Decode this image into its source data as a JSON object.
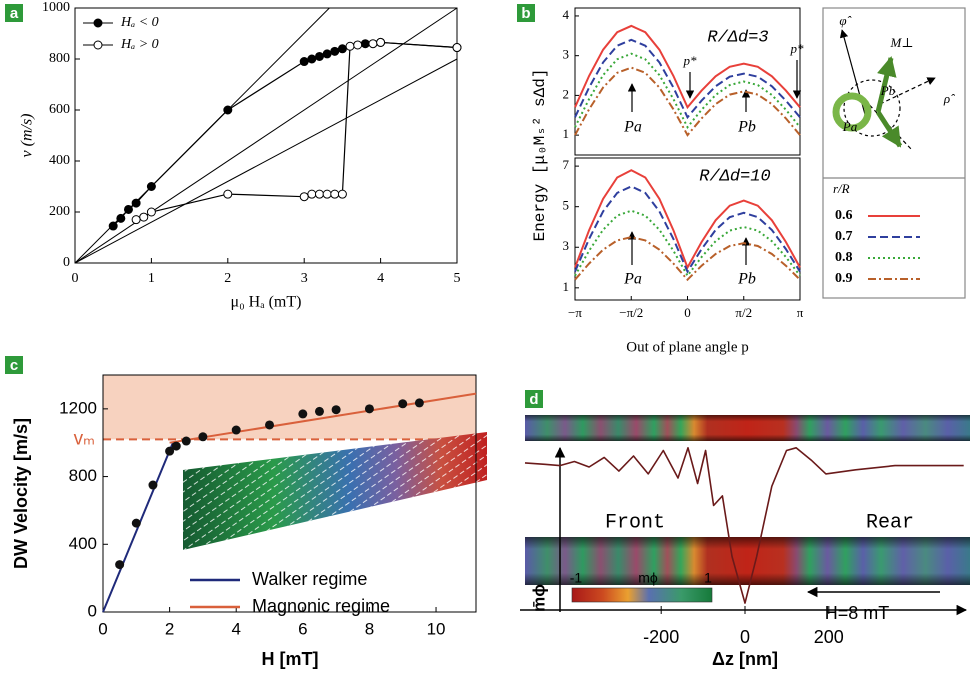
{
  "chart_data": [
    {
      "type": "line",
      "panel_label": "a",
      "xlabel": "μ₀ Hₐ (mT)",
      "ylabel": "v (m/s)",
      "xlim": [
        0,
        5
      ],
      "ylim": [
        0,
        1000
      ],
      "xticks": [
        0,
        1,
        2,
        3,
        4,
        5
      ],
      "yticks": [
        0,
        200,
        400,
        600,
        800,
        1000
      ],
      "legend": "upper left",
      "series": [
        {
          "name": "Hₐ < 0",
          "color": "#000000",
          "marker": "filled",
          "x": [
            0.5,
            0.6,
            0.7,
            0.8,
            1,
            2,
            3,
            3.1,
            3.2,
            3.3,
            3.4,
            3.5,
            3.8,
            4,
            5
          ],
          "values": [
            145,
            175,
            210,
            235,
            300,
            600,
            790,
            800,
            810,
            820,
            830,
            840,
            860,
            865,
            845
          ]
        },
        {
          "name": "Hₐ > 0",
          "color": "#000000",
          "marker": "open",
          "x": [
            0.8,
            0.9,
            1,
            2,
            3,
            3.1,
            3.2,
            3.3,
            3.4,
            3.5,
            3.6,
            3.7,
            3.9,
            4,
            5
          ],
          "values": [
            170,
            180,
            200,
            270,
            260,
            270,
            270,
            270,
            270,
            270,
            850,
            855,
            860,
            865,
            845
          ]
        }
      ],
      "guides": [
        {
          "x": [
            0,
            3.33
          ],
          "values": [
            0,
            1000
          ]
        },
        {
          "x": [
            0,
            5
          ],
          "values": [
            0,
            1000
          ]
        },
        {
          "x": [
            0,
            5
          ],
          "values": [
            0,
            800
          ]
        }
      ]
    },
    {
      "type": "line",
      "panel_label": "b",
      "xlim": [
        -3.1416,
        3.1416
      ],
      "ylim": [
        0.5,
        4.2
      ],
      "yticks": [
        1,
        2,
        3,
        4
      ],
      "annotations": [
        "R/Δd=3",
        "p*",
        "p*",
        "Pa",
        "Pb"
      ],
      "legend_title": "r/R",
      "diagram_labels": [
        "φ̂",
        "M⊥",
        "ρ̂",
        "Pa",
        "Pb"
      ],
      "x": [
        -3.1416,
        -2.7489,
        -2.3562,
        -1.9635,
        -1.5708,
        -1.1781,
        -0.7854,
        -0.3927,
        0,
        0.3927,
        0.7854,
        1.1781,
        1.5708,
        1.9635,
        2.3562,
        2.7489,
        3.1416
      ],
      "series": [
        {
          "name": "0.6",
          "color": "#e8403a",
          "dash": "solid",
          "values": [
            1.7,
            2.49,
            3.15,
            3.59,
            3.75,
            3.59,
            3.15,
            2.49,
            1.7,
            2.12,
            2.48,
            2.72,
            2.8,
            2.72,
            2.48,
            2.12,
            1.7
          ]
        },
        {
          "name": "0.7",
          "color": "#2f3f9e",
          "dash": "dashed",
          "values": [
            1.45,
            2.2,
            2.83,
            3.25,
            3.4,
            3.25,
            2.83,
            2.2,
            1.45,
            1.87,
            2.23,
            2.47,
            2.55,
            2.47,
            2.23,
            1.87,
            1.45
          ]
        },
        {
          "name": "0.8",
          "color": "#3aa83a",
          "dash": "dotted",
          "values": [
            1.2,
            1.91,
            2.51,
            2.91,
            3.05,
            2.91,
            2.51,
            1.91,
            1.2,
            1.64,
            2.01,
            2.26,
            2.35,
            2.26,
            2.01,
            1.64,
            1.2
          ]
        },
        {
          "name": "0.9",
          "color": "#b8602a",
          "dash": "dashdot",
          "values": [
            1.0,
            1.65,
            2.2,
            2.57,
            2.7,
            2.57,
            2.2,
            1.65,
            1.0,
            1.42,
            1.78,
            2.02,
            2.1,
            2.02,
            1.78,
            1.42,
            1.0
          ]
        }
      ]
    },
    {
      "type": "line",
      "xlabel": "Out of plane angle p",
      "ylabel": "Energy [μ₀Mₛ² sΔd]",
      "xlim": [
        -3.1416,
        3.1416
      ],
      "ylim": [
        0.4,
        7.4
      ],
      "xticks": [
        {
          "value": -3.1416,
          "label": "−π"
        },
        {
          "value": -1.5708,
          "label": "−π/2"
        },
        0,
        {
          "value": 1.5708,
          "label": "π/2"
        },
        {
          "value": 3.1416,
          "label": "π"
        }
      ],
      "yticks": [
        1,
        3,
        5,
        7
      ],
      "annotations": [
        "R/Δd=10",
        "Pa",
        "Pb"
      ],
      "x": [
        -3.1416,
        -2.7489,
        -2.3562,
        -1.9635,
        -1.5708,
        -1.1781,
        -0.7854,
        -0.3927,
        0,
        0.3927,
        0.7854,
        1.1781,
        1.5708,
        1.9635,
        2.3562,
        2.7489,
        3.1416
      ],
      "series": [
        {
          "color": "#e8403a",
          "dash": "solid",
          "values": [
            2.0,
            3.84,
            5.39,
            6.44,
            6.8,
            6.44,
            5.39,
            3.84,
            2.0,
            3.26,
            4.33,
            5.05,
            5.3,
            5.05,
            4.33,
            3.26,
            2.0
          ]
        },
        {
          "color": "#2f3f9e",
          "dash": "dashed",
          "values": [
            1.8,
            3.41,
            4.77,
            5.68,
            6.0,
            5.68,
            4.77,
            3.41,
            1.8,
            2.91,
            3.85,
            4.48,
            4.7,
            4.48,
            3.85,
            2.91,
            1.8
          ]
        },
        {
          "color": "#3aa83a",
          "dash": "dotted",
          "values": [
            1.6,
            2.83,
            3.86,
            4.56,
            4.8,
            4.56,
            3.86,
            2.83,
            1.6,
            2.52,
            3.3,
            3.82,
            4.0,
            3.82,
            3.3,
            2.52,
            1.6
          ]
        },
        {
          "color": "#b8602a",
          "dash": "dashdot",
          "values": [
            1.4,
            2.2,
            2.88,
            3.34,
            3.5,
            3.34,
            2.88,
            2.2,
            1.4,
            2.09,
            2.67,
            3.06,
            3.2,
            3.06,
            2.67,
            2.09,
            1.4
          ]
        }
      ]
    },
    {
      "type": "scatter",
      "panel_label": "c",
      "xlabel": "H [mT]",
      "ylabel": "DW Velocity [m/s]",
      "xlim": [
        0,
        11.2
      ],
      "ylim": [
        0,
        1400
      ],
      "xticks": [
        0,
        2,
        4,
        6,
        8,
        10
      ],
      "yticks": [
        0,
        400,
        800,
        1200
      ],
      "threshold": {
        "label": "vₘ",
        "value": 1020,
        "color": "#d9603b",
        "shade": "#f7d2bf"
      },
      "points": {
        "color": "#111111",
        "x": [
          0.5,
          1,
          1.5,
          2,
          2.2,
          2.5,
          3,
          4,
          5,
          6,
          6.5,
          7,
          8,
          9,
          9.5
        ],
        "values": [
          280,
          525,
          750,
          950,
          980,
          1010,
          1035,
          1075,
          1105,
          1170,
          1185,
          1195,
          1200,
          1230,
          1235
        ]
      },
      "legend": "lower right",
      "series": [
        {
          "name": "Walker regime",
          "color": "#1f2a7a",
          "x": [
            0,
            2.1
          ],
          "values": [
            0,
            1000
          ]
        },
        {
          "name": "Magnonic regime",
          "color": "#d9603b",
          "x": [
            2,
            11.2
          ],
          "values": [
            1000,
            1290
          ]
        }
      ]
    },
    {
      "type": "line",
      "panel_label": "d",
      "xlabel": "Δz [nm]",
      "ylabel": "m̄ϕ",
      "xlim": [
        -525,
        525
      ],
      "ylim": [
        -1.05,
        0.15
      ],
      "xticks": [
        -200,
        0,
        200
      ],
      "annotations": [
        "Front",
        "Rear",
        "H=8 mT"
      ],
      "colorbar": {
        "label": "mϕ",
        "ticks": [
          -1,
          1
        ]
      },
      "color": "#6a1a1a",
      "x": [
        -525,
        -478,
        -442,
        -407,
        -372,
        -336,
        -301,
        -266,
        -231,
        -195,
        -160,
        -136,
        -113,
        -94,
        -75,
        -54,
        -31,
        0,
        28,
        64,
        99,
        122,
        158,
        193,
        264,
        358,
        452,
        522
      ],
      "values": [
        0.02,
        0.01,
        0,
        0.03,
        -0.01,
        0.06,
        -0.04,
        0.07,
        -0.06,
        0.11,
        -0.09,
        0.13,
        -0.13,
        0.11,
        -0.29,
        -0.22,
        -0.66,
        -1.0,
        -0.66,
        -0.15,
        0.11,
        0.13,
        0.04,
        -0.06,
        -0.03,
        0,
        0,
        0
      ]
    }
  ]
}
